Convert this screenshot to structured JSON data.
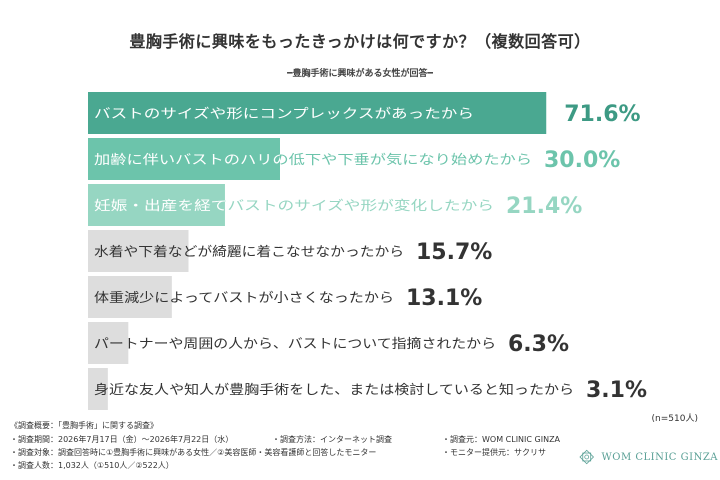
{
  "chart_data": {
    "type": "bar",
    "orientation": "horizontal",
    "title": "豊胸手術に興味をもったきっかけは何ですか？（複数回答可）",
    "subtitle": "━豊胸手術に興味がある女性が回答━",
    "categories": [
      "バストのサイズや形にコンプレックスがあったから",
      "加齢に伴いバストのハリの低下や下垂が気になり始めたから",
      "妊娠・出産を経てバストのサイズや形が変化したから",
      "水着や下着などが綺麗に着こなせなかったから",
      "体重減少によってバストが小さくなったから",
      "パートナーや周囲の人から、バストについて指摘されたから",
      "身近な友人や知人が豊胸手術をした、または検討していると知ったから"
    ],
    "values": [
      71.6,
      30.0,
      21.4,
      15.7,
      13.1,
      6.3,
      3.1
    ],
    "value_labels": [
      "71.6%",
      "30.0%",
      "21.4%",
      "15.7%",
      "13.1%",
      "6.3%",
      "3.1%"
    ],
    "xlim": [
      0,
      100
    ],
    "grid": false,
    "colors": {
      "top_bars": [
        "#4aa891",
        "#6cc4ab",
        "#96d6c2"
      ],
      "other_bars": "#dddddd",
      "top_text": "#ffffff",
      "top_value": [
        "#3d9a84",
        "#6cc4ab",
        "#96d6c2"
      ],
      "other_text": "#333333"
    }
  },
  "note": "(n=510人)",
  "footer": {
    "heading": "《調査概要：「豊胸手術」に関する調査》",
    "period": "・調査期間：2026年7月17日（金）〜2026年7月22日（水）",
    "method": "・調査方法：インターネット調査",
    "source": "・調査元：WOM CLINIC GINZA",
    "target": "・調査対象：調査回答時に①豊胸手術に興味がある女性／②美容医師・美容看護師と回答したモニター",
    "provider": "・モニター提供元：サクリサ",
    "count": "・調査人数：1,032人（①510人／②522人）"
  },
  "logo": {
    "text": "WOM CLINIC GINZA",
    "icon": "wom-logo-icon"
  }
}
